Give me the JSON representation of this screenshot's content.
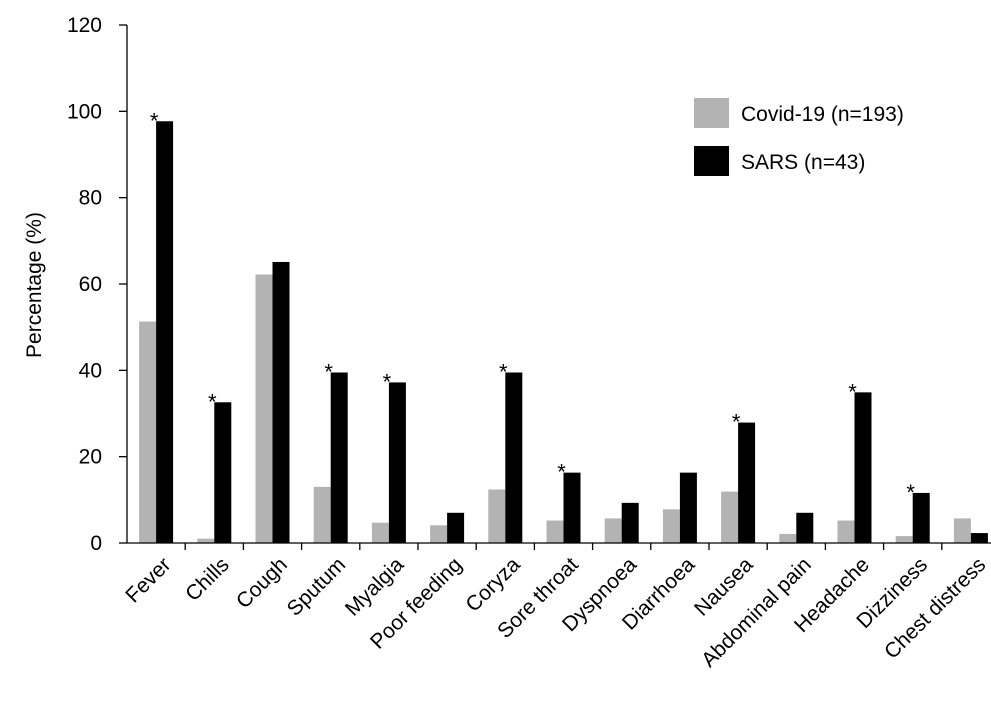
{
  "chart_data": {
    "type": "bar",
    "title": "",
    "xlabel": "",
    "ylabel": "Percentage (%)",
    "ylim": [
      0,
      120
    ],
    "yticks": [
      0,
      20,
      40,
      60,
      80,
      100,
      120
    ],
    "grid": false,
    "legend_position": "top-right",
    "categories": [
      "Fever",
      "Chills",
      "Cough",
      "Sputum",
      "Myalgia",
      "Poor feeding",
      "Coryza",
      "Sore throat",
      "Dyspnoea",
      "Diarrhoea",
      "Nausea",
      "Abdominal pain",
      "Headache",
      "Dizziness",
      "Chest distress"
    ],
    "series": [
      {
        "name": "Covid-19 (n=193)",
        "color": "#b3b3b3",
        "values": [
          51.3,
          1.0,
          62.2,
          13.0,
          4.7,
          4.1,
          12.4,
          5.2,
          5.7,
          7.8,
          11.9,
          2.1,
          5.2,
          1.6,
          5.7
        ]
      },
      {
        "name": "SARS (n=43)",
        "color": "#000000",
        "values": [
          97.7,
          32.6,
          65.1,
          39.5,
          37.2,
          7.0,
          39.5,
          16.3,
          9.3,
          16.3,
          27.9,
          7.0,
          34.9,
          11.6,
          2.3
        ]
      }
    ],
    "significance_marker": "*",
    "significant": [
      true,
      true,
      false,
      true,
      true,
      false,
      true,
      true,
      false,
      false,
      true,
      false,
      true,
      true,
      false
    ]
  }
}
